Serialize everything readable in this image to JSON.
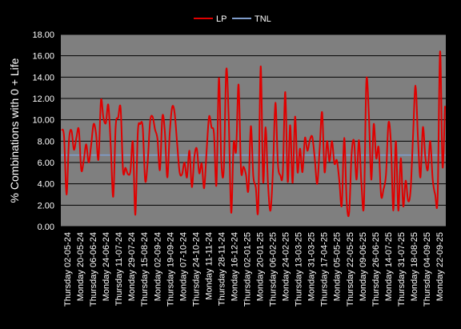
{
  "chart_data": {
    "type": "line",
    "ylabel": "% Combinations with 0 + Life",
    "xlabel": "",
    "ylim": [
      0,
      18
    ],
    "yticks": [
      "0.00",
      "2.00",
      "4.00",
      "6.00",
      "8.00",
      "10.00",
      "12.00",
      "14.00",
      "16.00",
      "18.00"
    ],
    "grid": true,
    "legend_position": "top-center",
    "x_tick_labels": [
      "Thursday  02-05-24",
      "Monday  20-05-24",
      "Thursday  06-06-24",
      "Monday  24-06-24",
      "Thursday  11-07-24",
      "Monday  29-07-24",
      "Thursday  15-08-24",
      "Monday  02-09-24",
      "Thursday  19-09-24",
      "Monday  07-10-24",
      "Thursday  24-10-24",
      "Monday  11-11-24",
      "Thursday  28-11-24",
      "Monday  16-12-24",
      "Thursday  02-01-25",
      "Monday  20-01-25",
      "Thursday  06-02-25",
      "Monday  24-02-25",
      "Thursday  13-03-25",
      "Monday  31-03-25",
      "Thursday  17-04-25",
      "Monday  05-05-25",
      "Thursday  22-05-25",
      "Monday  09-06-25",
      "Thursday  26-06-25",
      "Monday  14-07-25",
      "Thursday  31-07-25",
      "Monday  18-08-25",
      "Thursday  04-09-25",
      "Monday  22-09-25"
    ],
    "series": [
      {
        "name": "LP",
        "color": "#e00000",
        "values": [
          9.1,
          8.4,
          3.0,
          8.1,
          9.0,
          7.2,
          8.3,
          9.1,
          5.3,
          6.2,
          7.7,
          6.0,
          7.6,
          9.6,
          8.7,
          6.3,
          11.8,
          10.2,
          9.7,
          11.4,
          7.5,
          2.8,
          9.4,
          10.2,
          11.1,
          5.2,
          5.5,
          4.9,
          5.2,
          7.9,
          1.1,
          8.8,
          9.6,
          9.3,
          4.3,
          6.0,
          9.8,
          10.3,
          9.1,
          8.2,
          5.3,
          10.3,
          8.9,
          4.6,
          8.8,
          11.2,
          10.6,
          7.8,
          5.1,
          4.9,
          6.0,
          4.6,
          7.1,
          3.7,
          6.5,
          7.3,
          5.0,
          5.9,
          3.6,
          7.1,
          10.3,
          9.3,
          8.7,
          3.9,
          13.9,
          6.0,
          5.4,
          14.7,
          10.1,
          1.3,
          7.8,
          7.1,
          13.3,
          5.3,
          5.6,
          4.9,
          3.4,
          9.4,
          4.7,
          3.7,
          1.7,
          15.0,
          4.2,
          9.3,
          3.9,
          1.5,
          5.3,
          11.6,
          5.9,
          4.8,
          5.0,
          12.6,
          4.2,
          9.5,
          4.1,
          10.3,
          5.1,
          7.3,
          5.1,
          8.3,
          7.1,
          8.1,
          8.4,
          6.4,
          4.0,
          7.3,
          10.7,
          5.1,
          8.0,
          6.1,
          8.0,
          5.9,
          6.2,
          4.3,
          2.0,
          8.3,
          2.3,
          1.3,
          6.8,
          8.0,
          4.4,
          8.1,
          4.0,
          2.0,
          13.6,
          10.6,
          4.4,
          9.6,
          6.4,
          7.4,
          2.9,
          3.5,
          4.9,
          9.7,
          7.8,
          1.5,
          8.0,
          1.5,
          6.4,
          1.9,
          4.3,
          2.4,
          3.4,
          8.5,
          13.2,
          8.3,
          4.6,
          9.3,
          6.5,
          5.3,
          8.0,
          4.4,
          3.0,
          2.7,
          16.4,
          5.6,
          11.3
        ]
      },
      {
        "name": "TNL",
        "color": "#7f9ccb",
        "values": [
          6.7,
          6.7
        ]
      }
    ]
  }
}
